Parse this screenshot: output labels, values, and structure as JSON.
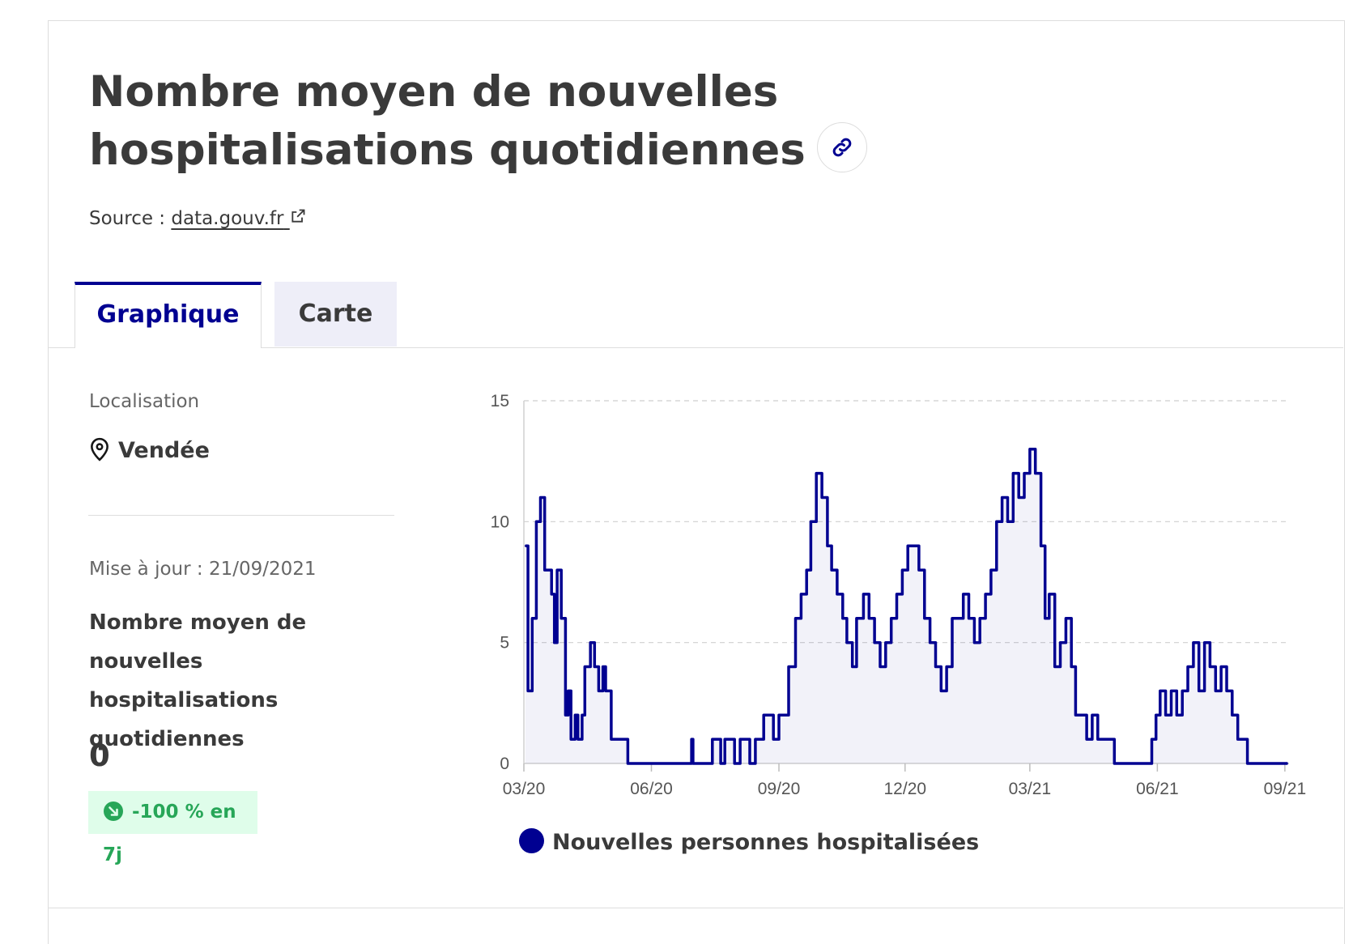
{
  "header": {
    "title": "Nombre moyen de nouvelles hospitalisations quotidiennes",
    "source_prefix": "Source :",
    "source_link": "data.gouv.fr"
  },
  "tabs": [
    {
      "label": "Graphique",
      "active": true
    },
    {
      "label": "Carte",
      "active": false
    }
  ],
  "sidebar": {
    "location_label": "Localisation",
    "location_value": "Vendée",
    "update_text": "Mise à jour : 21/09/2021",
    "kpi_title": "Nombre moyen de nouvelles hospitalisations quotidiennes",
    "kpi_value": "0",
    "trend_badge": "-100 % en 7j"
  },
  "colors": {
    "accent": "#000091",
    "badge_bg": "#dffdea",
    "badge_text": "#27a658"
  },
  "icons": {
    "link": "link-icon",
    "external": "external-link-icon",
    "location": "map-pin-icon",
    "trend": "arrow-down-right-icon"
  },
  "chart_data": {
    "type": "area",
    "x_axis_type": "date",
    "ylim": [
      0,
      15
    ],
    "yticks": [
      0,
      5,
      10,
      15
    ],
    "xlim": [
      "2020-03-18",
      "2021-09-21"
    ],
    "xticks": [
      {
        "date": "2020-03-18",
        "label": "03/20"
      },
      {
        "date": "2020-06-18",
        "label": "06/20"
      },
      {
        "date": "2020-09-18",
        "label": "09/20"
      },
      {
        "date": "2020-12-18",
        "label": "12/20"
      },
      {
        "date": "2021-03-18",
        "label": "03/21"
      },
      {
        "date": "2021-06-18",
        "label": "06/21"
      },
      {
        "date": "2021-09-18",
        "label": "09/21"
      }
    ],
    "grid": true,
    "legend_position": "bottom",
    "series": [
      {
        "name": "Nouvelles personnes hospitalisées",
        "color": "#000091",
        "points": [
          [
            "2020-03-19",
            9
          ],
          [
            "2020-03-21",
            3
          ],
          [
            "2020-03-24",
            6
          ],
          [
            "2020-03-27",
            10
          ],
          [
            "2020-03-30",
            11
          ],
          [
            "2020-04-02",
            8
          ],
          [
            "2020-04-07",
            7
          ],
          [
            "2020-04-09",
            5
          ],
          [
            "2020-04-11",
            8
          ],
          [
            "2020-04-14",
            6
          ],
          [
            "2020-04-17",
            2
          ],
          [
            "2020-04-19",
            3
          ],
          [
            "2020-04-21",
            1
          ],
          [
            "2020-04-24",
            2
          ],
          [
            "2020-04-26",
            1
          ],
          [
            "2020-04-29",
            2
          ],
          [
            "2020-05-01",
            4
          ],
          [
            "2020-05-05",
            5
          ],
          [
            "2020-05-08",
            4
          ],
          [
            "2020-05-11",
            3
          ],
          [
            "2020-05-14",
            4
          ],
          [
            "2020-05-16",
            3
          ],
          [
            "2020-05-20",
            1
          ],
          [
            "2020-05-28",
            1
          ],
          [
            "2020-06-01",
            0
          ],
          [
            "2020-07-15",
            0
          ],
          [
            "2020-07-17",
            1
          ],
          [
            "2020-07-18",
            0
          ],
          [
            "2020-08-01",
            1
          ],
          [
            "2020-08-07",
            0
          ],
          [
            "2020-08-10",
            1
          ],
          [
            "2020-08-17",
            0
          ],
          [
            "2020-08-21",
            1
          ],
          [
            "2020-08-28",
            0
          ],
          [
            "2020-09-01",
            1
          ],
          [
            "2020-09-07",
            2
          ],
          [
            "2020-09-14",
            1
          ],
          [
            "2020-09-18",
            2
          ],
          [
            "2020-09-25",
            4
          ],
          [
            "2020-09-30",
            6
          ],
          [
            "2020-10-04",
            7
          ],
          [
            "2020-10-08",
            8
          ],
          [
            "2020-10-11",
            10
          ],
          [
            "2020-10-15",
            12
          ],
          [
            "2020-10-19",
            11
          ],
          [
            "2020-10-23",
            9
          ],
          [
            "2020-10-26",
            8
          ],
          [
            "2020-10-30",
            7
          ],
          [
            "2020-11-03",
            6
          ],
          [
            "2020-11-06",
            5
          ],
          [
            "2020-11-10",
            4
          ],
          [
            "2020-11-13",
            6
          ],
          [
            "2020-11-18",
            7
          ],
          [
            "2020-11-22",
            6
          ],
          [
            "2020-11-26",
            5
          ],
          [
            "2020-11-30",
            4
          ],
          [
            "2020-12-04",
            5
          ],
          [
            "2020-12-08",
            6
          ],
          [
            "2020-12-12",
            7
          ],
          [
            "2020-12-16",
            8
          ],
          [
            "2020-12-20",
            9
          ],
          [
            "2020-12-24",
            9
          ],
          [
            "2020-12-28",
            8
          ],
          [
            "2021-01-01",
            6
          ],
          [
            "2021-01-05",
            5
          ],
          [
            "2021-01-09",
            4
          ],
          [
            "2021-01-13",
            3
          ],
          [
            "2021-01-17",
            4
          ],
          [
            "2021-01-21",
            6
          ],
          [
            "2021-01-25",
            6
          ],
          [
            "2021-01-29",
            7
          ],
          [
            "2021-02-02",
            6
          ],
          [
            "2021-02-06",
            5
          ],
          [
            "2021-02-10",
            6
          ],
          [
            "2021-02-14",
            7
          ],
          [
            "2021-02-18",
            8
          ],
          [
            "2021-02-22",
            10
          ],
          [
            "2021-02-26",
            11
          ],
          [
            "2021-03-02",
            10
          ],
          [
            "2021-03-06",
            12
          ],
          [
            "2021-03-10",
            11
          ],
          [
            "2021-03-14",
            12
          ],
          [
            "2021-03-18",
            13
          ],
          [
            "2021-03-22",
            12
          ],
          [
            "2021-03-26",
            9
          ],
          [
            "2021-03-29",
            6
          ],
          [
            "2021-04-01",
            7
          ],
          [
            "2021-04-05",
            4
          ],
          [
            "2021-04-09",
            5
          ],
          [
            "2021-04-13",
            6
          ],
          [
            "2021-04-17",
            4
          ],
          [
            "2021-04-20",
            2
          ],
          [
            "2021-04-24",
            2
          ],
          [
            "2021-04-28",
            1
          ],
          [
            "2021-05-02",
            2
          ],
          [
            "2021-05-06",
            1
          ],
          [
            "2021-05-10",
            1
          ],
          [
            "2021-05-15",
            1
          ],
          [
            "2021-05-18",
            0
          ],
          [
            "2021-06-10",
            0
          ],
          [
            "2021-06-14",
            1
          ],
          [
            "2021-06-17",
            2
          ],
          [
            "2021-06-20",
            3
          ],
          [
            "2021-06-24",
            2
          ],
          [
            "2021-06-28",
            3
          ],
          [
            "2021-07-02",
            2
          ],
          [
            "2021-07-06",
            3
          ],
          [
            "2021-07-10",
            4
          ],
          [
            "2021-07-14",
            5
          ],
          [
            "2021-07-18",
            3
          ],
          [
            "2021-07-22",
            5
          ],
          [
            "2021-07-26",
            4
          ],
          [
            "2021-07-30",
            3
          ],
          [
            "2021-08-03",
            4
          ],
          [
            "2021-08-07",
            3
          ],
          [
            "2021-08-11",
            2
          ],
          [
            "2021-08-15",
            1
          ],
          [
            "2021-08-19",
            1
          ],
          [
            "2021-08-22",
            0
          ],
          [
            "2021-09-20",
            0
          ]
        ]
      }
    ]
  }
}
